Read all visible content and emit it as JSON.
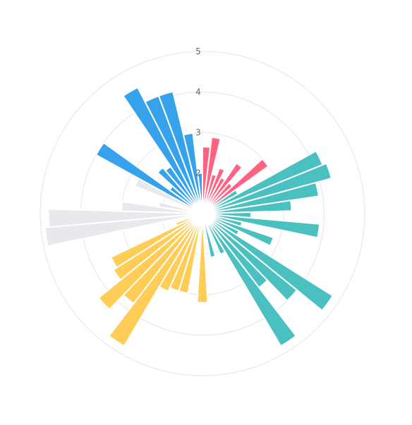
{
  "chart_data": {
    "type": "polar-bar",
    "rlim": [
      1,
      5
    ],
    "r_ticks": [
      "2",
      "3",
      "4",
      "5"
    ],
    "grid": true,
    "colors": [
      "#ff6384",
      "#4bc0c0",
      "#ffcd56",
      "#e7e9ed",
      "#36a2eb"
    ],
    "groups": [
      {
        "color_index": 0,
        "values": [
          2.65,
          2.9,
          2.0,
          2.2,
          2.0,
          2.5,
          2.0,
          3.0
        ]
      },
      {
        "color_index": 1,
        "values": [
          2.0,
          4.2,
          4.3,
          3.9,
          3.2,
          2.2,
          3.9,
          2.0,
          2.85,
          2.0,
          4.8,
          4.0,
          3.3,
          4.8,
          2.1,
          1.3,
          2.1
        ]
      },
      {
        "color_index": 2,
        "values": [
          1.1,
          3.2,
          1.4,
          3.0,
          3.0,
          3.1,
          4.8,
          3.8,
          4.3,
          3.6,
          3.5,
          1.7
        ]
      },
      {
        "color_index": 3,
        "values": [
          1.1,
          4.9,
          4.8,
          3.0,
          2.1,
          1.1,
          2.8
        ]
      },
      {
        "color_index": 4,
        "values": [
          4.0,
          2.0,
          2.5,
          2.4,
          4.5,
          4.1,
          4.1,
          3.0,
          2.0
        ]
      }
    ]
  }
}
